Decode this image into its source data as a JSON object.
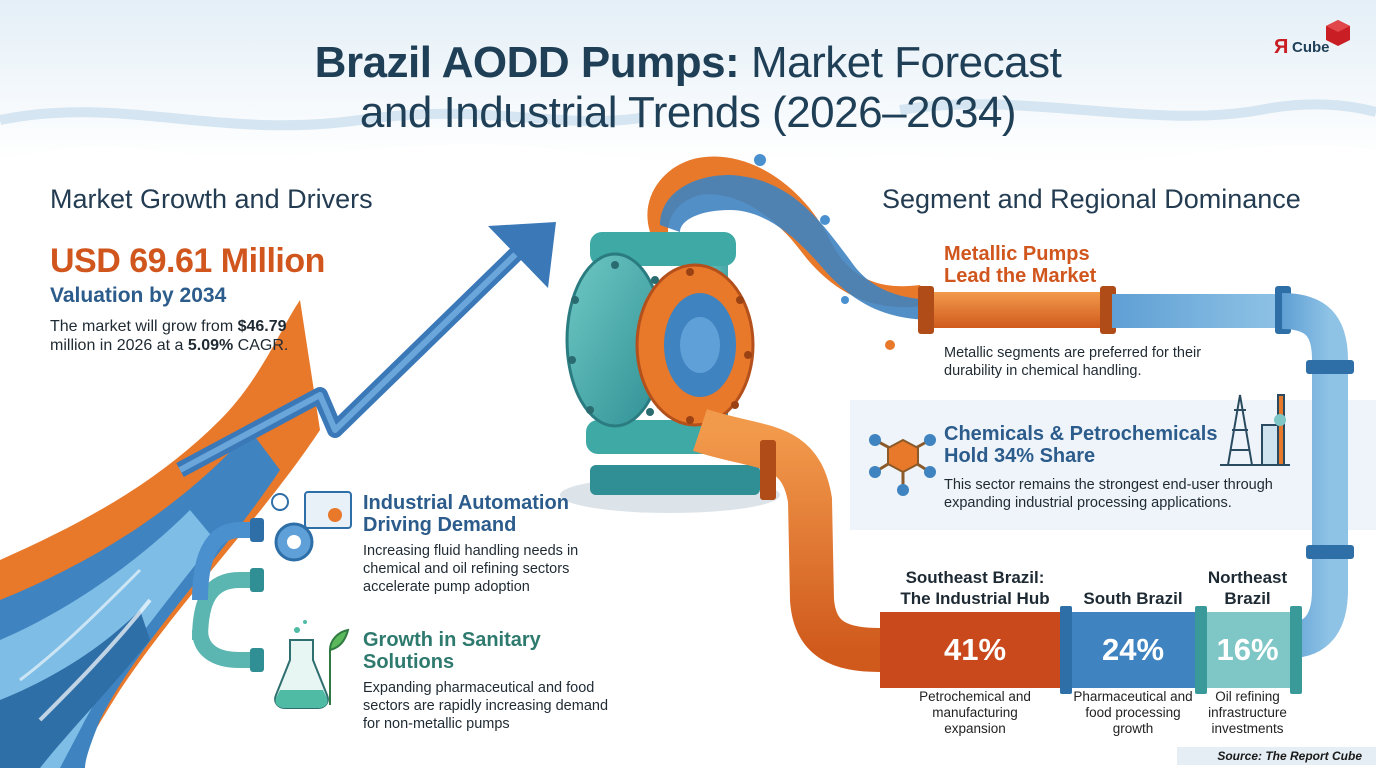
{
  "title": {
    "line1_bold": "Brazil AODD Pumps:",
    "line1_rest": " Market Forecast",
    "line2": "and Industrial Trends (2026–2034)"
  },
  "brand": {
    "mark": "Я",
    "name": "Cube"
  },
  "growth": {
    "heading": "Market Growth and Drivers",
    "value": "USD 69.61 Million",
    "value_sub": "Valuation by 2034",
    "desc_part1": "The market will grow from ",
    "desc_bold1": "$46.79",
    "desc_part2": "million in 2026 at a ",
    "desc_bold2": "5.09%",
    "desc_part3": " CAGR."
  },
  "drivers": [
    {
      "heading_l1": "Industrial Automation",
      "heading_l2": "Driving Demand",
      "text_l1": "Increasing fluid handling needs in",
      "text_l2": "chemical and oil refining sectors",
      "text_l3": "accelerate pump adoption",
      "icon": "gear-automation-icon"
    },
    {
      "heading_l1": "Growth in Sanitary",
      "heading_l2": "Solutions",
      "text_l1": "Expanding pharmaceutical and food",
      "text_l2": "sectors are rapidly increasing demand",
      "text_l3": "for non-metallic pumps",
      "icon": "flask-plant-icon"
    }
  ],
  "segment": {
    "heading": "Segment and Regional Dominance",
    "metallic_h1": "Metallic Pumps",
    "metallic_h2": "Lead the Market",
    "metallic_t1": "Metallic segments are preferred for their",
    "metallic_t2": "durability in chemical handling.",
    "chem_h1": "Chemicals & Petrochemicals",
    "chem_h2": "Hold 34% Share",
    "chem_t1": "This sector remains the strongest end-user through",
    "chem_t2": "expanding industrial processing applications."
  },
  "regions": [
    {
      "name_l1": "Southeast Brazil:",
      "name_l2": "The Industrial Hub",
      "pct": "41%",
      "share": 41,
      "d1": "Petrochemical and",
      "d2": "manufacturing",
      "d3": "expansion",
      "color": "#c9491c"
    },
    {
      "name_l1": "",
      "name_l2": "South Brazil",
      "pct": "24%",
      "share": 24,
      "d1": "Pharmaceutical and",
      "d2": "food processing",
      "d3": "growth",
      "color": "#3f83c0"
    },
    {
      "name_l1": "Northeast",
      "name_l2": "Brazil",
      "pct": "16%",
      "share": 16,
      "d1": "Oil refining",
      "d2": "infrastructure",
      "d3": "investments",
      "color": "#7fc6c6"
    }
  ],
  "source": "Source: The Report Cube",
  "colors": {
    "orange": "#e8782a",
    "blue": "#3f83c0",
    "teal": "#3fa9a5",
    "navy": "#1f3f57"
  }
}
